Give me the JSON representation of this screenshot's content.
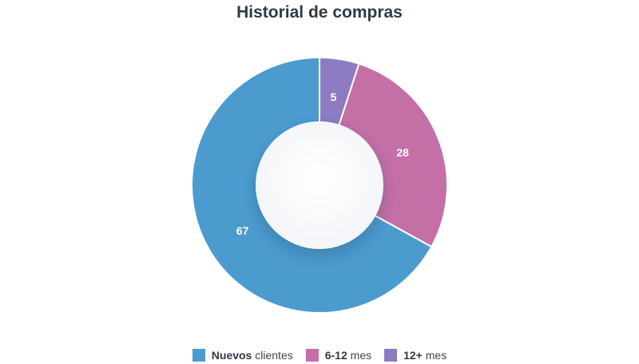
{
  "chart_data": {
    "type": "pie",
    "title": "Historial de compras",
    "donut": true,
    "categories": [
      "Nuevos clientes",
      "6-12 mes",
      "12+ mes"
    ],
    "values": [
      67,
      28,
      5
    ],
    "labels": [
      "67",
      "28",
      "5"
    ],
    "legend_placement": "bottom",
    "legend": [
      {
        "bold": "Nuevos",
        "rest": " clientes",
        "color": "#4c9bcf"
      },
      {
        "bold": "6-12",
        "rest": " mes",
        "color": "#c56fa7"
      },
      {
        "bold": "12+",
        "rest": " mes",
        "color": "#8e7cc3"
      }
    ],
    "colors": [
      "#4c9bcf",
      "#c56fa7",
      "#8e7cc3"
    ]
  }
}
